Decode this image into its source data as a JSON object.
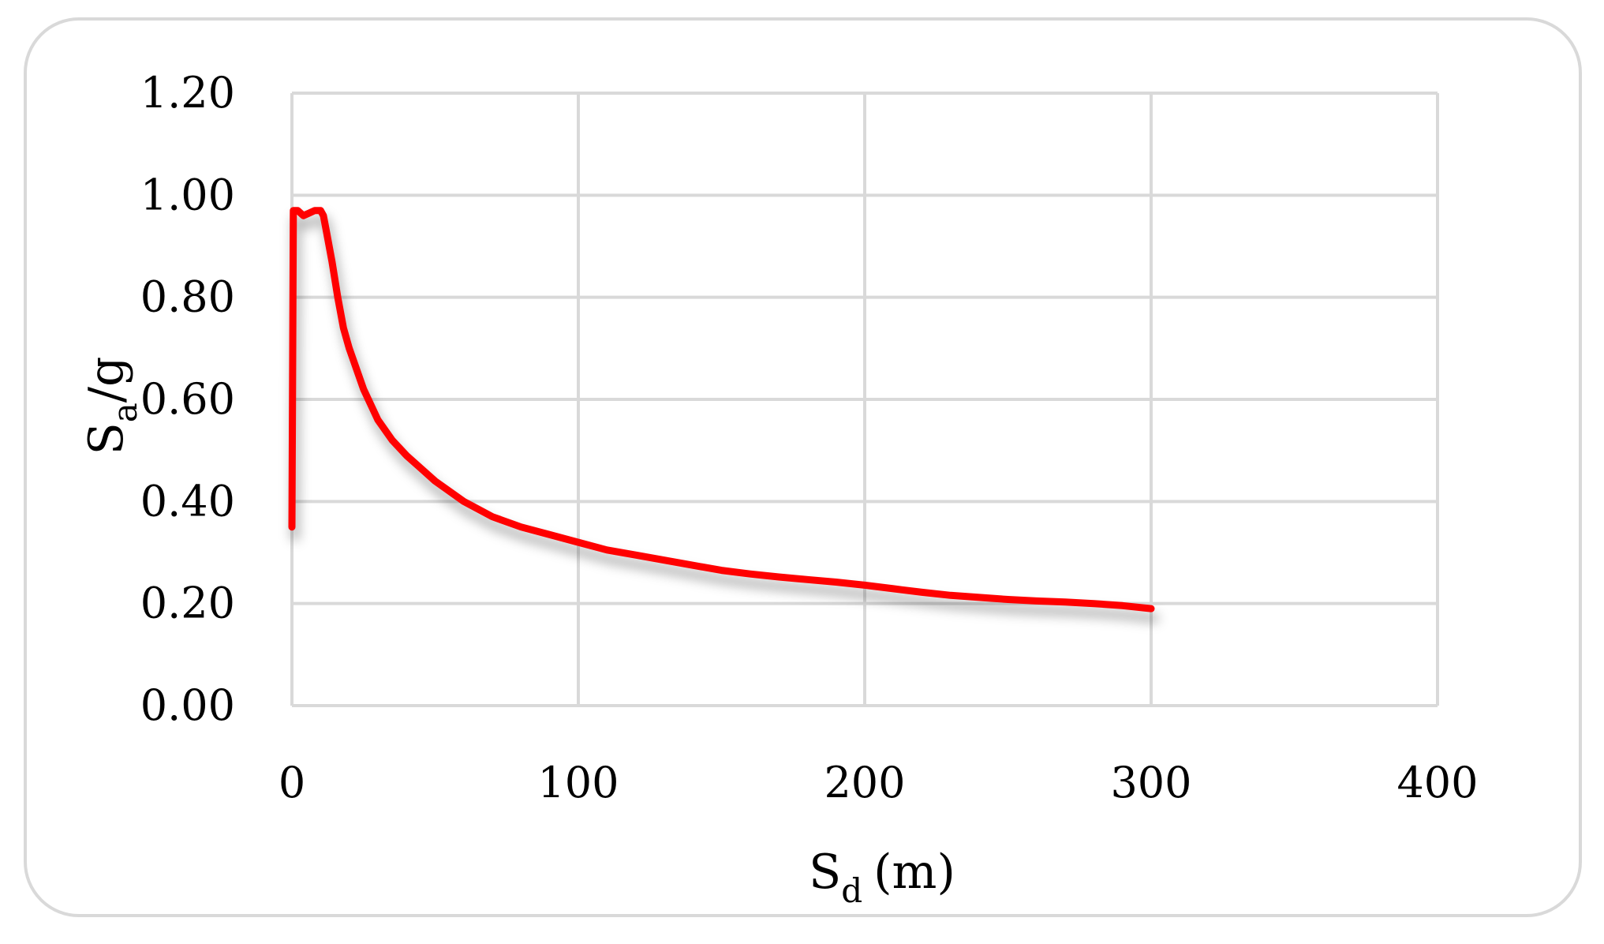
{
  "chart_data": {
    "type": "line",
    "title": "",
    "xlabel": "S",
    "xlabel_sub": "d",
    "xlabel_unit": "(m)",
    "ylabel": "S",
    "ylabel_sub": "a",
    "ylabel_suffix": "/g",
    "xlim": [
      0,
      400
    ],
    "ylim": [
      0,
      1.2
    ],
    "x_ticks": [
      "0",
      "100",
      "200",
      "300",
      "400"
    ],
    "y_ticks": [
      "0.00",
      "0.20",
      "0.40",
      "0.60",
      "0.80",
      "1.00",
      "1.20"
    ],
    "grid": true,
    "legend": "none",
    "series": [
      {
        "color": "#ff0000",
        "x": [
          0,
          0.5,
          2,
          4,
          6,
          8,
          10,
          11,
          12,
          14,
          16,
          18,
          20,
          25,
          30,
          35,
          40,
          45,
          50,
          60,
          70,
          80,
          90,
          100,
          110,
          120,
          130,
          140,
          150,
          160,
          170,
          180,
          190,
          200,
          210,
          220,
          230,
          240,
          250,
          260,
          270,
          280,
          290,
          300
        ],
        "y": [
          0.35,
          0.97,
          0.97,
          0.96,
          0.965,
          0.97,
          0.97,
          0.96,
          0.93,
          0.87,
          0.8,
          0.74,
          0.7,
          0.62,
          0.56,
          0.52,
          0.49,
          0.465,
          0.44,
          0.4,
          0.37,
          0.35,
          0.335,
          0.32,
          0.305,
          0.295,
          0.285,
          0.275,
          0.265,
          0.258,
          0.252,
          0.247,
          0.242,
          0.236,
          0.229,
          0.222,
          0.216,
          0.212,
          0.208,
          0.205,
          0.203,
          0.2,
          0.196,
          0.19
        ]
      }
    ]
  }
}
